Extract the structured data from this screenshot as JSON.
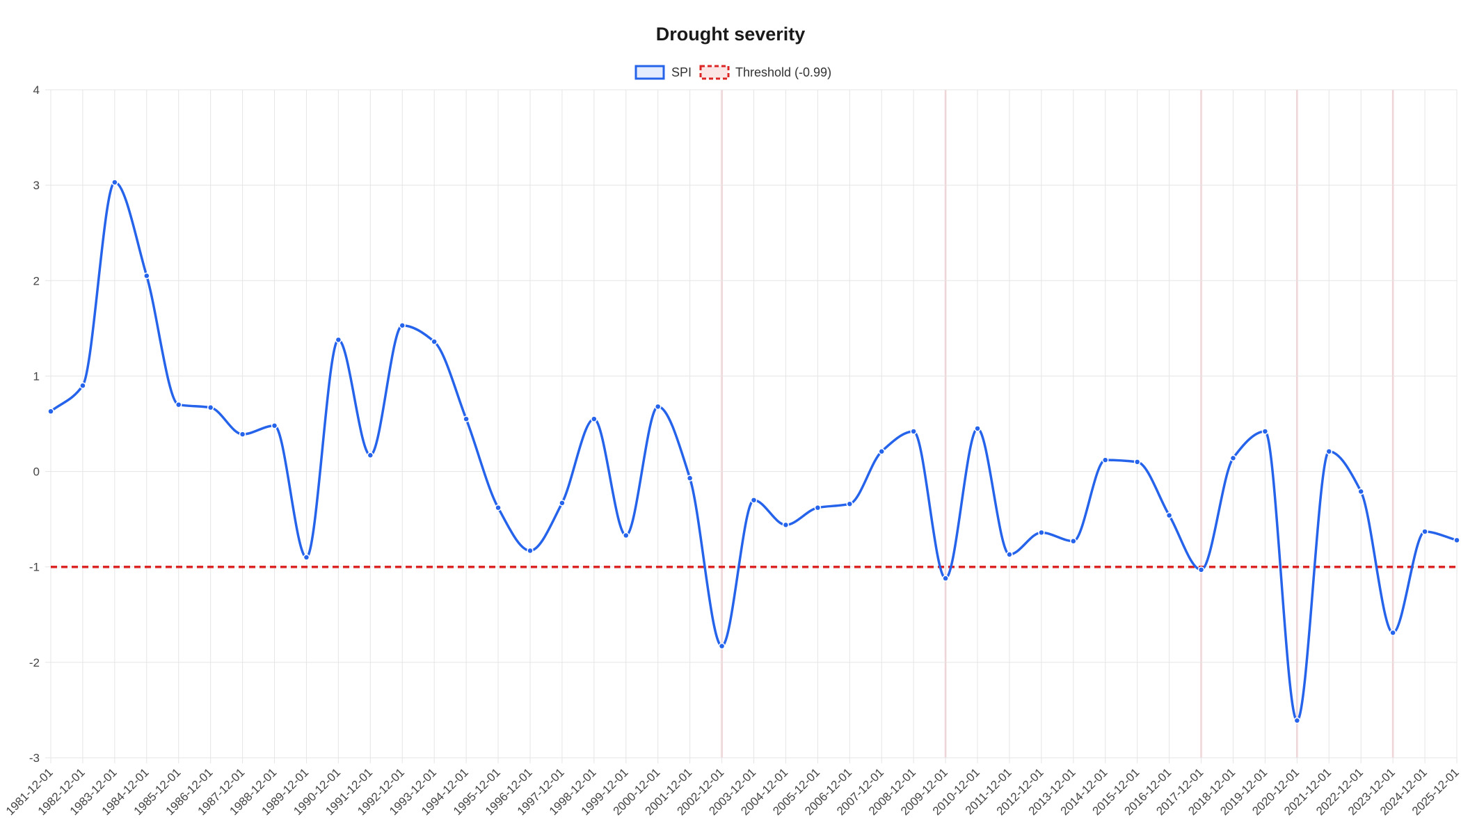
{
  "chart_data": {
    "type": "line",
    "title": "Drought severity",
    "xlabel": "",
    "ylabel": "",
    "categories": [
      "1981-12-01",
      "1982-12-01",
      "1983-12-01",
      "1984-12-01",
      "1985-12-01",
      "1986-12-01",
      "1987-12-01",
      "1988-12-01",
      "1989-12-01",
      "1990-12-01",
      "1991-12-01",
      "1992-12-01",
      "1993-12-01",
      "1994-12-01",
      "1995-12-01",
      "1996-12-01",
      "1997-12-01",
      "1998-12-01",
      "1999-12-01",
      "2000-12-01",
      "2001-12-01",
      "2002-12-01",
      "2003-12-01",
      "2004-12-01",
      "2005-12-01",
      "2006-12-01",
      "2007-12-01",
      "2008-12-01",
      "2009-12-01",
      "2010-12-01",
      "2011-12-01",
      "2012-12-01",
      "2013-12-01",
      "2014-12-01",
      "2015-12-01",
      "2016-12-01",
      "2017-12-01",
      "2018-12-01",
      "2019-12-01",
      "2020-12-01",
      "2021-12-01",
      "2022-12-01",
      "2023-12-01",
      "2024-12-01",
      "2025-12-01"
    ],
    "series": [
      {
        "name": "SPI",
        "color": "#2563eb",
        "values": [
          0.63,
          0.9,
          3.03,
          2.05,
          0.7,
          0.67,
          0.39,
          0.48,
          -0.9,
          1.38,
          0.17,
          1.53,
          1.36,
          0.55,
          -0.38,
          -0.83,
          -0.33,
          0.55,
          -0.67,
          0.68,
          -0.07,
          -1.83,
          -0.3,
          -0.56,
          -0.38,
          -0.34,
          0.21,
          0.42,
          -1.12,
          0.45,
          -0.87,
          -0.64,
          -0.73,
          0.12,
          0.1,
          -0.46,
          -1.03,
          0.14,
          0.42,
          -2.61,
          0.21,
          -0.21,
          -1.69,
          -0.63,
          -0.72
        ]
      },
      {
        "name": "Threshold (-0.99)",
        "color": "#dc2626",
        "line_style": "dashed",
        "value": -1
      }
    ],
    "highlighted_categories": [
      "2002-12-01",
      "2009-12-01",
      "2017-12-01",
      "2020-12-01",
      "2023-12-01"
    ],
    "highlight_color": "#f4c7cc",
    "ylim": [
      -3,
      4
    ],
    "yticks": [
      -3,
      -2,
      -1,
      0,
      1,
      2,
      3,
      4
    ],
    "grid": true,
    "legend_position": "top"
  }
}
